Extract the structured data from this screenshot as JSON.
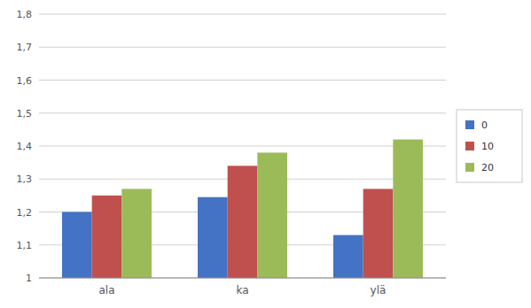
{
  "chart_data": {
    "type": "bar",
    "categories": [
      "ala",
      "ka",
      "ylä"
    ],
    "series": [
      {
        "name": "0",
        "color": "#4472C4",
        "values": [
          1.2,
          1.245,
          1.13
        ]
      },
      {
        "name": "10",
        "color": "#C0504D",
        "values": [
          1.25,
          1.34,
          1.27
        ]
      },
      {
        "name": "20",
        "color": "#9BBB59",
        "values": [
          1.27,
          1.38,
          1.42
        ]
      }
    ],
    "ylim": [
      1.0,
      1.8
    ],
    "yticks": [
      1,
      {
        "value": 1.1,
        "label": "1,1"
      },
      {
        "value": 1.2,
        "label": "1,2"
      },
      {
        "value": 1.3,
        "label": "1,3"
      },
      {
        "value": 1.4,
        "label": "1,4"
      },
      {
        "value": 1.5,
        "label": "1,5"
      },
      {
        "value": 1.6,
        "label": "1,6"
      },
      {
        "value": 1.7,
        "label": "1,7"
      },
      {
        "value": 1.8,
        "label": "1,8"
      }
    ],
    "grid": true,
    "legend": "right"
  }
}
